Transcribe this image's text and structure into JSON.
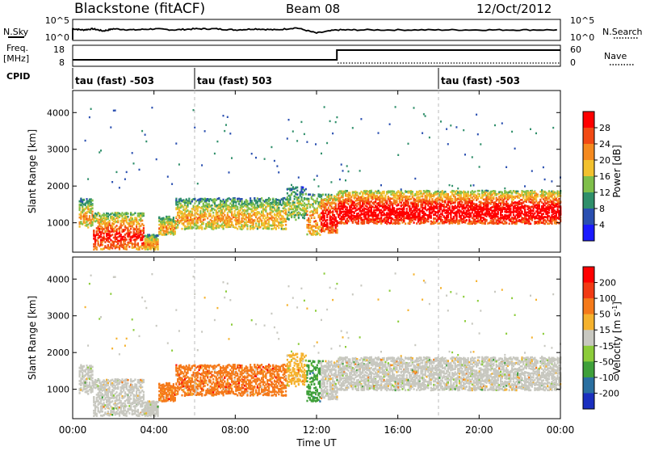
{
  "header": {
    "station": "Blackstone (fitACF)",
    "beam": "Beam 08",
    "date": "12/Oct/2012"
  },
  "side_labels": {
    "nsky": "N.Sky",
    "freq_line1": "Freq.",
    "freq_line2": "[MHz]",
    "cpid": "CPID",
    "nsearch": "N.Search",
    "nave": "Nave"
  },
  "noise_axis": {
    "left_ticks": [
      "10^5",
      "10^0"
    ],
    "right_ticks": [
      "10^5",
      "10^0"
    ]
  },
  "freq_axis": {
    "left_ticks": [
      "18",
      "8"
    ],
    "right_ticks": [
      "60",
      "0"
    ]
  },
  "cpid_segments": [
    {
      "label": "tau (fast) -503",
      "start": 0,
      "end": 6
    },
    {
      "label": "tau (fast) 503",
      "start": 6,
      "end": 18
    },
    {
      "label": "tau (fast) -503",
      "start": 18,
      "end": 24
    }
  ],
  "x_axis": {
    "label": "Time UT",
    "ticks": [
      "00:00",
      "04:00",
      "08:00",
      "12:00",
      "16:00",
      "20:00",
      "00:00"
    ],
    "range_hours": [
      0,
      24
    ]
  },
  "power_panel": {
    "ylabel": "Slant Range [km]",
    "yticks": [
      "4000",
      "3000",
      "2000",
      "1000"
    ],
    "ylim": [
      200,
      4600
    ],
    "colorbar_label": "Power [dB]",
    "colorbar_ticks": [
      "28",
      "24",
      "20",
      "16",
      "12",
      "8",
      "4"
    ]
  },
  "velocity_panel": {
    "ylabel": "Slant Range [km]",
    "yticks": [
      "4000",
      "3000",
      "2000",
      "1000"
    ],
    "ylim": [
      200,
      4600
    ],
    "colorbar_label": "Velocity [m s",
    "colorbar_label_sup": "-1",
    "colorbar_label_end": "]",
    "colorbar_ticks": [
      "200",
      "100",
      "50",
      "15",
      "-15",
      "-50",
      "-100",
      "-200"
    ]
  },
  "colors": {
    "power_scale": [
      "#1a1aff",
      "#2a4fb0",
      "#2f8f6a",
      "#7fbf4a",
      "#f2c12e",
      "#f58a1f",
      "#f24a14",
      "#ff0000"
    ],
    "velocity_scale": [
      "#1a2fbf",
      "#2a6fa0",
      "#3fa03a",
      "#8ccc3a",
      "#c8c8c0",
      "#f5b22e",
      "#f57a1a",
      "#f23a14",
      "#ff0000"
    ]
  },
  "chart_data": [
    {
      "type": "line",
      "name": "noise",
      "x": [
        0,
        0.5,
        1,
        1.5,
        2,
        3,
        4,
        5,
        6,
        7,
        8,
        9,
        10,
        11,
        12,
        13,
        14,
        16,
        18,
        20,
        22,
        24
      ],
      "y": [
        0.55,
        0.5,
        0.55,
        0.45,
        0.55,
        0.5,
        0.55,
        0.5,
        0.55,
        0.55,
        0.5,
        0.55,
        0.5,
        0.6,
        0.35,
        0.5,
        0.5,
        0.5,
        0.5,
        0.5,
        0.5,
        0.5
      ]
    },
    {
      "type": "line",
      "name": "frequency",
      "x": [
        0,
        13,
        13,
        24
      ],
      "y": [
        10.5,
        10.5,
        16.5,
        16.5
      ]
    },
    {
      "type": "heatmap",
      "name": "power",
      "x_range_hours": [
        0,
        24
      ],
      "y_range_km": [
        200,
        4600
      ]
    },
    {
      "type": "heatmap",
      "name": "velocity",
      "x_range_hours": [
        0,
        24
      ],
      "y_range_km": [
        200,
        4600
      ]
    }
  ]
}
